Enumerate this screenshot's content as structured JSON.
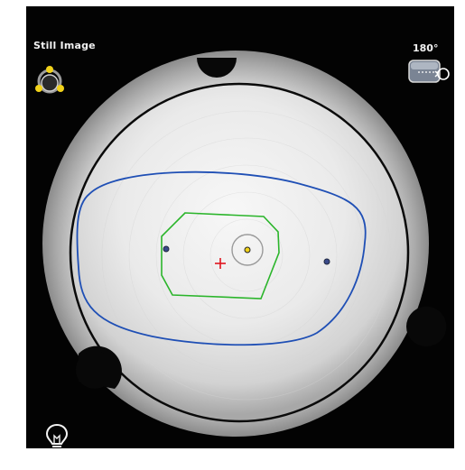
{
  "viewer": {
    "mode_label": "Still Image",
    "rotation_label": "180°",
    "icons": {
      "mode": "still-image-mode-icon",
      "rotation": "rotate-180-icon",
      "light": "light-bulb-icon"
    },
    "colors": {
      "background": "#030303",
      "outer_trace": "#1f4fb5",
      "inner_trace": "#2bb52b",
      "center_cross": "#e0141e",
      "mode_dots": "#f1d21a"
    }
  }
}
